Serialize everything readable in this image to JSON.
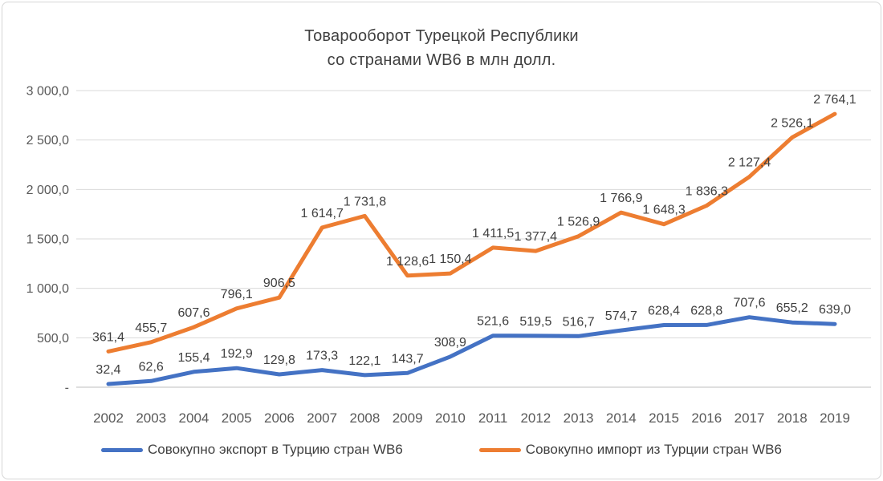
{
  "title": {
    "line1": "Товарооборот Турецкой Республики",
    "line2": "со странами WB6 в млн долл."
  },
  "chart_data": {
    "type": "line",
    "title": "Товарооборот Турецкой Республики со странами WB6 в млн долл.",
    "categories": [
      "2002",
      "2003",
      "2004",
      "2005",
      "2006",
      "2007",
      "2008",
      "2009",
      "2010",
      "2011",
      "2012",
      "2013",
      "2014",
      "2015",
      "2016",
      "2017",
      "2018",
      "2019"
    ],
    "series": [
      {
        "name": "Совокупно экспорт в Турцию стран WB6",
        "color": "#4472C4",
        "values": [
          32.4,
          62.6,
          155.4,
          192.9,
          129.8,
          173.3,
          122.1,
          143.7,
          308.9,
          521.6,
          519.5,
          516.7,
          574.7,
          628.4,
          628.8,
          707.6,
          655.2,
          639.0
        ]
      },
      {
        "name": "Совокупно импорт из Турции стран WB6",
        "color": "#ED7D31",
        "values": [
          361.4,
          455.7,
          607.6,
          796.1,
          906.5,
          1614.7,
          1731.8,
          1128.6,
          1150.4,
          1411.5,
          1377.4,
          1526.9,
          1766.9,
          1648.3,
          1836.3,
          2127.4,
          2526.1,
          2764.1
        ]
      }
    ],
    "xlabel": "",
    "ylabel": "",
    "ylim": [
      0,
      3000
    ],
    "ytick_step": 500,
    "ytick_labels": [
      "-",
      "500,0",
      "1 000,0",
      "1 500,0",
      "2 000,0",
      "2 500,0",
      "3 000,0"
    ],
    "grid": true,
    "gridline_color": "#D9D9D9",
    "axis_line_color": "#BFBFBF",
    "legend_position": "bottom",
    "decimal_separator": ",",
    "thousands_separator": " "
  }
}
